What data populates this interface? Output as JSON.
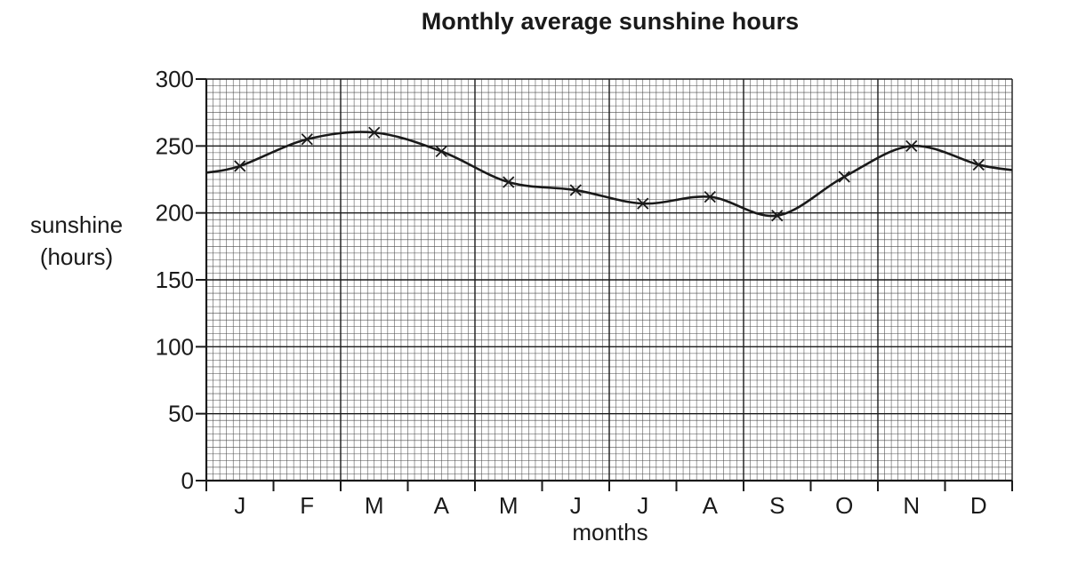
{
  "chart_data": {
    "type": "line",
    "title": "Monthly average sunshine hours",
    "xlabel": "months",
    "ylabel": [
      "sunshine",
      "(hours)"
    ],
    "categories": [
      "J",
      "F",
      "M",
      "A",
      "M",
      "J",
      "J",
      "A",
      "S",
      "O",
      "N",
      "D"
    ],
    "series": [
      {
        "values": [
          235,
          255,
          260,
          246,
          223,
          217,
          207,
          212,
          198,
          227,
          250,
          236
        ]
      }
    ],
    "ylim": [
      0,
      300
    ],
    "yticks": [
      0,
      50,
      100,
      150,
      200,
      250,
      300
    ],
    "grid": true,
    "marker": "cross",
    "curve_ends": [
      230,
      232
    ]
  }
}
